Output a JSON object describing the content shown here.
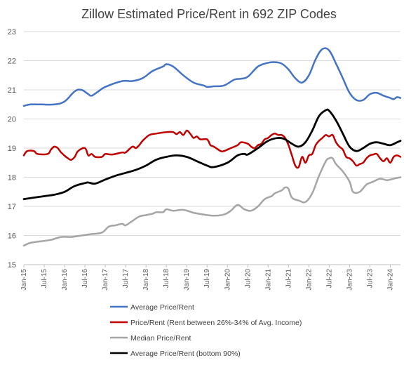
{
  "chart_data": {
    "type": "line",
    "title": "Zillow Estimated Price/Rent in 692 ZIP Codes",
    "xlabel": "",
    "ylabel": "",
    "ylim": [
      15,
      23
    ],
    "yticks": [
      15,
      16,
      17,
      18,
      19,
      20,
      21,
      22,
      23
    ],
    "grid": true,
    "legend_position": "bottom",
    "x_start": "Jan-15",
    "x_end": "Apr-24",
    "x_tick_labels": [
      "Jan-15",
      "Jul-15",
      "Jan-16",
      "Jul-16",
      "Jan-17",
      "Jul-17",
      "Jan-18",
      "Jul-18",
      "Jan-19",
      "Jul-19",
      "Jan-20",
      "Jul-20",
      "Jan-21",
      "Jul-21",
      "Jan-22",
      "Jul-22",
      "Jan-23",
      "Jul-23",
      "Jan-24"
    ],
    "series": [
      {
        "name": "Average Price/Rent",
        "color": "#4472C4",
        "width": 2.5,
        "points": [
          [
            "Jan-15",
            20.45
          ],
          [
            "Mar-15",
            20.5
          ],
          [
            "Jun-15",
            20.5
          ],
          [
            "Oct-15",
            20.5
          ],
          [
            "Jan-16",
            20.6
          ],
          [
            "Apr-16",
            20.95
          ],
          [
            "Jun-16",
            21.0
          ],
          [
            "Aug-16",
            20.85
          ],
          [
            "Sep-16",
            20.8
          ],
          [
            "Nov-16",
            20.95
          ],
          [
            "Jan-17",
            21.1
          ],
          [
            "Jun-17",
            21.3
          ],
          [
            "Sep-17",
            21.3
          ],
          [
            "Dec-17",
            21.4
          ],
          [
            "Mar-18",
            21.65
          ],
          [
            "Jun-18",
            21.8
          ],
          [
            "Jul-18",
            21.88
          ],
          [
            "Sep-18",
            21.8
          ],
          [
            "Dec-18",
            21.5
          ],
          [
            "Mar-19",
            21.25
          ],
          [
            "Jun-19",
            21.15
          ],
          [
            "Jul-19",
            21.1
          ],
          [
            "Sep-19",
            21.12
          ],
          [
            "Dec-19",
            21.15
          ],
          [
            "Mar-20",
            21.35
          ],
          [
            "May-20",
            21.38
          ],
          [
            "Jul-20",
            21.45
          ],
          [
            "Oct-20",
            21.8
          ],
          [
            "Jan-21",
            21.93
          ],
          [
            "Mar-21",
            21.95
          ],
          [
            "May-21",
            21.9
          ],
          [
            "Jul-21",
            21.7
          ],
          [
            "Sep-21",
            21.4
          ],
          [
            "Nov-21",
            21.25
          ],
          [
            "Jan-22",
            21.5
          ],
          [
            "Mar-22",
            22.05
          ],
          [
            "May-22",
            22.4
          ],
          [
            "Jul-22",
            22.35
          ],
          [
            "Sep-22",
            21.9
          ],
          [
            "Nov-22",
            21.4
          ],
          [
            "Jan-23",
            20.9
          ],
          [
            "Mar-23",
            20.65
          ],
          [
            "May-23",
            20.65
          ],
          [
            "Jul-23",
            20.85
          ],
          [
            "Sep-23",
            20.9
          ],
          [
            "Nov-23",
            20.8
          ],
          [
            "Jan-24",
            20.72
          ],
          [
            "Feb-24",
            20.68
          ],
          [
            "Mar-24",
            20.75
          ],
          [
            "Apr-24",
            20.72
          ]
        ]
      },
      {
        "name": "Price/Rent (Rent between 26%-34% of Avg. Income)",
        "color": "#C00000",
        "width": 2.5,
        "points": [
          [
            "Jan-15",
            18.75
          ],
          [
            "Feb-15",
            18.9
          ],
          [
            "Apr-15",
            18.9
          ],
          [
            "May-15",
            18.8
          ],
          [
            "Aug-15",
            18.8
          ],
          [
            "Sep-15",
            18.95
          ],
          [
            "Oct-15",
            19.05
          ],
          [
            "Nov-15",
            19.0
          ],
          [
            "Dec-15",
            18.85
          ],
          [
            "Feb-16",
            18.65
          ],
          [
            "Mar-16",
            18.6
          ],
          [
            "Apr-16",
            18.7
          ],
          [
            "May-16",
            18.9
          ],
          [
            "Jul-16",
            19.0
          ],
          [
            "Aug-16",
            18.75
          ],
          [
            "Sep-16",
            18.8
          ],
          [
            "Oct-16",
            18.7
          ],
          [
            "Dec-16",
            18.7
          ],
          [
            "Jan-17",
            18.8
          ],
          [
            "Mar-17",
            18.78
          ],
          [
            "Jun-17",
            18.85
          ],
          [
            "Jul-17",
            18.85
          ],
          [
            "Sep-17",
            19.05
          ],
          [
            "Oct-17",
            19.0
          ],
          [
            "Nov-17",
            19.1
          ],
          [
            "Dec-17",
            19.25
          ],
          [
            "Feb-18",
            19.45
          ],
          [
            "Apr-18",
            19.5
          ],
          [
            "Jul-18",
            19.55
          ],
          [
            "Sep-18",
            19.55
          ],
          [
            "Oct-18",
            19.48
          ],
          [
            "Nov-18",
            19.55
          ],
          [
            "Dec-18",
            19.45
          ],
          [
            "Jan-19",
            19.6
          ],
          [
            "Feb-19",
            19.5
          ],
          [
            "Mar-19",
            19.35
          ],
          [
            "Apr-19",
            19.4
          ],
          [
            "May-19",
            19.3
          ],
          [
            "Jul-19",
            19.3
          ],
          [
            "Aug-19",
            19.1
          ],
          [
            "Sep-19",
            19.05
          ],
          [
            "Nov-19",
            18.9
          ],
          [
            "Dec-19",
            18.9
          ],
          [
            "Feb-20",
            19.0
          ],
          [
            "Apr-20",
            19.1
          ],
          [
            "May-20",
            19.2
          ],
          [
            "Jul-20",
            19.15
          ],
          [
            "Aug-20",
            19.05
          ],
          [
            "Sep-20",
            19.0
          ],
          [
            "Oct-20",
            19.1
          ],
          [
            "Nov-20",
            19.15
          ],
          [
            "Dec-20",
            19.3
          ],
          [
            "Jan-21",
            19.35
          ],
          [
            "Feb-21",
            19.45
          ],
          [
            "Mar-21",
            19.5
          ],
          [
            "Apr-21",
            19.45
          ],
          [
            "May-21",
            19.45
          ],
          [
            "Jun-21",
            19.35
          ],
          [
            "Jul-21",
            19.1
          ],
          [
            "Aug-21",
            18.75
          ],
          [
            "Sep-21",
            18.4
          ],
          [
            "Oct-21",
            18.35
          ],
          [
            "Nov-21",
            18.7
          ],
          [
            "Dec-21",
            18.5
          ],
          [
            "Jan-22",
            18.75
          ],
          [
            "Feb-22",
            18.8
          ],
          [
            "Mar-22",
            19.1
          ],
          [
            "Apr-22",
            19.25
          ],
          [
            "May-22",
            19.35
          ],
          [
            "Jun-22",
            19.45
          ],
          [
            "Jul-22",
            19.4
          ],
          [
            "Aug-22",
            19.45
          ],
          [
            "Sep-22",
            19.2
          ],
          [
            "Oct-22",
            19.05
          ],
          [
            "Nov-22",
            18.95
          ],
          [
            "Dec-22",
            18.7
          ],
          [
            "Jan-23",
            18.65
          ],
          [
            "Feb-23",
            18.55
          ],
          [
            "Mar-23",
            18.4
          ],
          [
            "Apr-23",
            18.45
          ],
          [
            "May-23",
            18.5
          ],
          [
            "Jun-23",
            18.65
          ],
          [
            "Jul-23",
            18.75
          ],
          [
            "Aug-23",
            18.78
          ],
          [
            "Sep-23",
            18.8
          ],
          [
            "Oct-23",
            18.65
          ],
          [
            "Nov-23",
            18.55
          ],
          [
            "Dec-23",
            18.65
          ],
          [
            "Jan-24",
            18.5
          ],
          [
            "Feb-24",
            18.7
          ],
          [
            "Mar-24",
            18.75
          ],
          [
            "Apr-24",
            18.7
          ]
        ]
      },
      {
        "name": "Median Price/Rent",
        "color": "#A5A5A5",
        "width": 2.5,
        "points": [
          [
            "Jan-15",
            15.65
          ],
          [
            "Mar-15",
            15.75
          ],
          [
            "Jun-15",
            15.8
          ],
          [
            "Sep-15",
            15.85
          ],
          [
            "Dec-15",
            15.95
          ],
          [
            "Mar-16",
            15.95
          ],
          [
            "Jun-16",
            16.0
          ],
          [
            "Sep-16",
            16.05
          ],
          [
            "Dec-16",
            16.1
          ],
          [
            "Feb-17",
            16.3
          ],
          [
            "Apr-17",
            16.35
          ],
          [
            "Jun-17",
            16.4
          ],
          [
            "Jul-17",
            16.35
          ],
          [
            "Sep-17",
            16.5
          ],
          [
            "Nov-17",
            16.65
          ],
          [
            "Jan-18",
            16.7
          ],
          [
            "Mar-18",
            16.75
          ],
          [
            "Apr-18",
            16.8
          ],
          [
            "Jun-18",
            16.8
          ],
          [
            "Jul-18",
            16.9
          ],
          [
            "Sep-18",
            16.85
          ],
          [
            "Dec-18",
            16.88
          ],
          [
            "Mar-19",
            16.78
          ],
          [
            "Jun-19",
            16.72
          ],
          [
            "Sep-19",
            16.68
          ],
          [
            "Dec-19",
            16.72
          ],
          [
            "Feb-20",
            16.85
          ],
          [
            "Apr-20",
            17.05
          ],
          [
            "Jun-20",
            16.9
          ],
          [
            "Aug-20",
            16.85
          ],
          [
            "Oct-20",
            17.0
          ],
          [
            "Dec-20",
            17.25
          ],
          [
            "Feb-21",
            17.35
          ],
          [
            "Mar-21",
            17.45
          ],
          [
            "May-21",
            17.55
          ],
          [
            "Jun-21",
            17.65
          ],
          [
            "Jul-21",
            17.6
          ],
          [
            "Aug-21",
            17.3
          ],
          [
            "Oct-21",
            17.2
          ],
          [
            "Dec-21",
            17.15
          ],
          [
            "Feb-22",
            17.45
          ],
          [
            "Apr-22",
            18.05
          ],
          [
            "Jun-22",
            18.55
          ],
          [
            "Jul-22",
            18.65
          ],
          [
            "Aug-22",
            18.65
          ],
          [
            "Sep-22",
            18.45
          ],
          [
            "Nov-22",
            18.2
          ],
          [
            "Jan-23",
            17.85
          ],
          [
            "Feb-23",
            17.5
          ],
          [
            "Apr-23",
            17.5
          ],
          [
            "Jun-23",
            17.75
          ],
          [
            "Aug-23",
            17.85
          ],
          [
            "Oct-23",
            17.95
          ],
          [
            "Dec-23",
            17.9
          ],
          [
            "Feb-24",
            17.95
          ],
          [
            "Apr-24",
            18.0
          ]
        ]
      },
      {
        "name": "Average Price/Rent (bottom 90%)",
        "color": "#000000",
        "width": 2.8,
        "points": [
          [
            "Jan-15",
            17.25
          ],
          [
            "Apr-15",
            17.3
          ],
          [
            "Jul-15",
            17.35
          ],
          [
            "Oct-15",
            17.4
          ],
          [
            "Jan-16",
            17.5
          ],
          [
            "Apr-16",
            17.7
          ],
          [
            "Jul-16",
            17.8
          ],
          [
            "Aug-16",
            17.82
          ],
          [
            "Oct-16",
            17.78
          ],
          [
            "Jan-17",
            17.92
          ],
          [
            "Apr-17",
            18.05
          ],
          [
            "Jul-17",
            18.15
          ],
          [
            "Oct-17",
            18.25
          ],
          [
            "Jan-18",
            18.4
          ],
          [
            "Apr-18",
            18.6
          ],
          [
            "Jul-18",
            18.7
          ],
          [
            "Oct-18",
            18.75
          ],
          [
            "Jan-19",
            18.7
          ],
          [
            "Apr-19",
            18.55
          ],
          [
            "Jul-19",
            18.4
          ],
          [
            "Sep-19",
            18.35
          ],
          [
            "Jan-20",
            18.5
          ],
          [
            "Apr-20",
            18.75
          ],
          [
            "Jun-20",
            18.8
          ],
          [
            "Jul-20",
            18.78
          ],
          [
            "Oct-20",
            19.0
          ],
          [
            "Jan-21",
            19.25
          ],
          [
            "Apr-21",
            19.35
          ],
          [
            "Jun-21",
            19.3
          ],
          [
            "Aug-21",
            19.15
          ],
          [
            "Oct-21",
            19.05
          ],
          [
            "Dec-21",
            19.2
          ],
          [
            "Feb-22",
            19.6
          ],
          [
            "Apr-22",
            20.1
          ],
          [
            "Jun-22",
            20.3
          ],
          [
            "Jul-22",
            20.28
          ],
          [
            "Sep-22",
            19.95
          ],
          [
            "Nov-22",
            19.5
          ],
          [
            "Jan-23",
            19.05
          ],
          [
            "Mar-23",
            18.9
          ],
          [
            "May-23",
            19.0
          ],
          [
            "Jul-23",
            19.15
          ],
          [
            "Sep-23",
            19.2
          ],
          [
            "Nov-23",
            19.15
          ],
          [
            "Jan-24",
            19.1
          ],
          [
            "Mar-24",
            19.2
          ],
          [
            "Apr-24",
            19.25
          ]
        ]
      }
    ]
  }
}
